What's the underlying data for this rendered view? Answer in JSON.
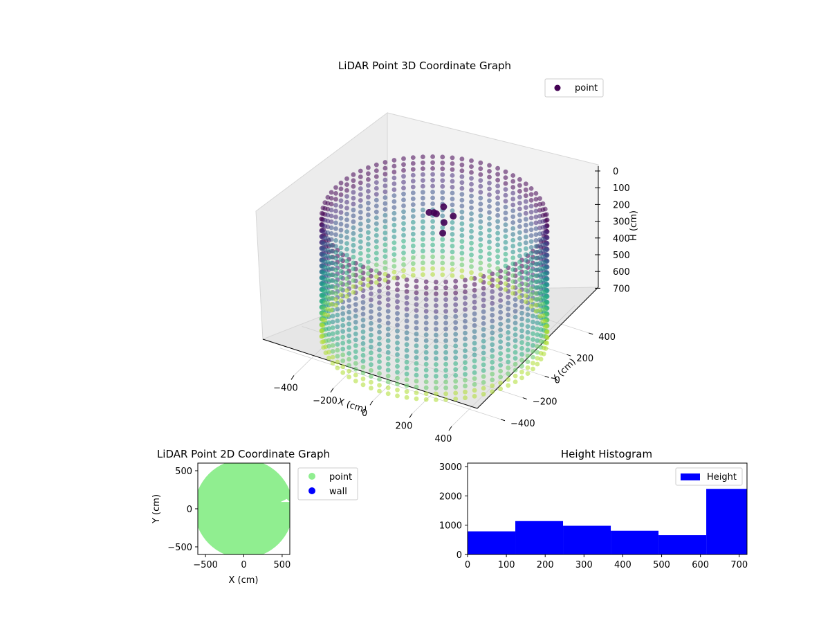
{
  "chart_data": [
    {
      "type": "scatter3d",
      "title": "LiDAR Point 3D Coordinate Graph",
      "xlabel": "X (cm)",
      "ylabel": "Y (cm)",
      "zlabel": "H (cm)",
      "x_ticks": [
        "−400",
        "−200",
        "0",
        "200",
        "400"
      ],
      "y_ticks": [
        "−400",
        "−200",
        "0",
        "200",
        "400"
      ],
      "z_ticks": [
        "0",
        "100",
        "200",
        "300",
        "400",
        "500",
        "600",
        "700"
      ],
      "xlim": [
        -560,
        560
      ],
      "ylim": [
        -560,
        560
      ],
      "zlim": [
        0,
        720
      ],
      "z_inverted": true,
      "legend": [
        {
          "name": "point",
          "color": "#440154"
        }
      ],
      "legend_loc": "upper right",
      "colormap": "viridis",
      "shape": "cylindrical room scan",
      "room_radius_cm": 500,
      "room_height_cm": 700
    },
    {
      "type": "scatter",
      "title": "LiDAR Point 2D Coordinate Graph",
      "xlabel": "X (cm)",
      "ylabel": "Y (cm)",
      "x_ticks": [
        "−500",
        "0",
        "500"
      ],
      "y_ticks": [
        "−500",
        "0",
        "500"
      ],
      "xlim": [
        -600,
        600
      ],
      "ylim": [
        -600,
        600
      ],
      "series": [
        {
          "name": "point",
          "color": "#90ee90"
        },
        {
          "name": "wall",
          "color": "#0000ff"
        }
      ],
      "legend_loc": "outside right"
    },
    {
      "type": "bar",
      "title": "Height Histogram",
      "xlabel": "",
      "ylabel": "",
      "x_ticks": [
        "0",
        "100",
        "200",
        "300",
        "400",
        "500",
        "600",
        "700"
      ],
      "y_ticks": [
        "0",
        "1000",
        "2000",
        "3000"
      ],
      "bin_edges": [
        0,
        123,
        246,
        369,
        492,
        615,
        738
      ],
      "values": [
        790,
        1140,
        980,
        810,
        660,
        2240
      ],
      "xlim": [
        0,
        720
      ],
      "ylim": [
        0,
        3120
      ],
      "series": [
        {
          "name": "Height",
          "color": "#0000ff"
        }
      ],
      "legend_loc": "upper right"
    }
  ]
}
